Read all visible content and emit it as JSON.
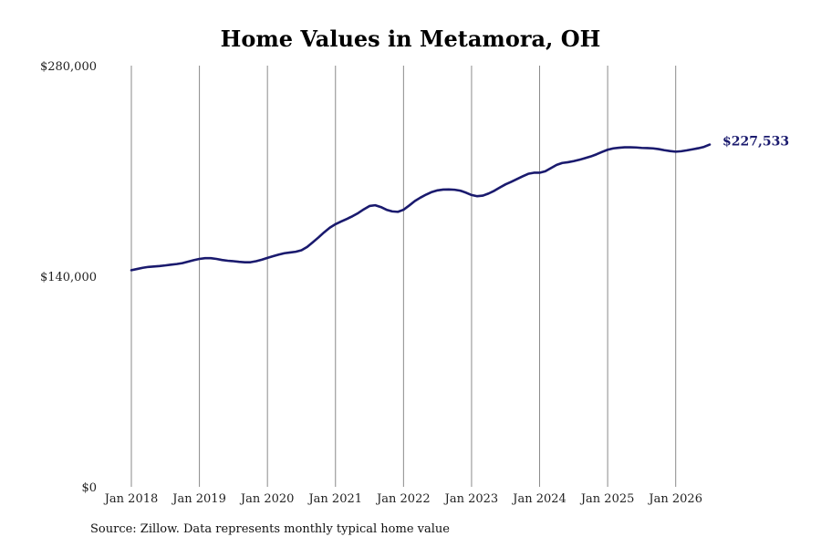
{
  "chart_data": {
    "type": "line",
    "title": "Home Values in Metamora, OH",
    "xlabel": "",
    "ylabel": "",
    "ylim": [
      0,
      280000
    ],
    "yticks": [
      {
        "value": 0,
        "label": "$0"
      },
      {
        "value": 140000,
        "label": "$140,000"
      },
      {
        "value": 280000,
        "label": "$280,000"
      }
    ],
    "xlim": [
      "2018-01",
      "2026-07"
    ],
    "xticks": [
      {
        "date": "2018-01",
        "label": "Jan 2018"
      },
      {
        "date": "2019-01",
        "label": "Jan 2019"
      },
      {
        "date": "2020-01",
        "label": "Jan 2020"
      },
      {
        "date": "2021-01",
        "label": "Jan 2021"
      },
      {
        "date": "2022-01",
        "label": "Jan 2022"
      },
      {
        "date": "2023-01",
        "label": "Jan 2023"
      },
      {
        "date": "2024-01",
        "label": "Jan 2024"
      },
      {
        "date": "2025-01",
        "label": "Jan 2025"
      },
      {
        "date": "2026-01",
        "label": "Jan 2026"
      }
    ],
    "grid": "vertical",
    "series": [
      {
        "name": "",
        "color": "#1a1a6e",
        "points": [
          [
            "2018-01",
            144000
          ],
          [
            "2018-02",
            144800
          ],
          [
            "2018-03",
            145600
          ],
          [
            "2018-04",
            146200
          ],
          [
            "2018-05",
            146500
          ],
          [
            "2018-06",
            146800
          ],
          [
            "2018-07",
            147200
          ],
          [
            "2018-08",
            147700
          ],
          [
            "2018-09",
            148100
          ],
          [
            "2018-10",
            148700
          ],
          [
            "2018-11",
            149700
          ],
          [
            "2018-12",
            150700
          ],
          [
            "2019-01",
            151500
          ],
          [
            "2019-02",
            152000
          ],
          [
            "2019-03",
            152000
          ],
          [
            "2019-04",
            151500
          ],
          [
            "2019-05",
            150800
          ],
          [
            "2019-06",
            150300
          ],
          [
            "2019-07",
            150000
          ],
          [
            "2019-08",
            149600
          ],
          [
            "2019-09",
            149300
          ],
          [
            "2019-10",
            149300
          ],
          [
            "2019-11",
            150000
          ],
          [
            "2019-12",
            151000
          ],
          [
            "2020-01",
            152200
          ],
          [
            "2020-02",
            153300
          ],
          [
            "2020-03",
            154400
          ],
          [
            "2020-04",
            155300
          ],
          [
            "2020-05",
            155800
          ],
          [
            "2020-06",
            156300
          ],
          [
            "2020-07",
            157300
          ],
          [
            "2020-08",
            159500
          ],
          [
            "2020-09",
            162600
          ],
          [
            "2020-10",
            165800
          ],
          [
            "2020-11",
            169200
          ],
          [
            "2020-12",
            172300
          ],
          [
            "2021-01",
            174600
          ],
          [
            "2021-02",
            176400
          ],
          [
            "2021-03",
            178100
          ],
          [
            "2021-04",
            179900
          ],
          [
            "2021-05",
            182000
          ],
          [
            "2021-06",
            184500
          ],
          [
            "2021-07",
            186700
          ],
          [
            "2021-08",
            187200
          ],
          [
            "2021-09",
            186000
          ],
          [
            "2021-10",
            184200
          ],
          [
            "2021-11",
            183100
          ],
          [
            "2021-12",
            182800
          ],
          [
            "2022-01",
            184200
          ],
          [
            "2022-02",
            187000
          ],
          [
            "2022-03",
            190000
          ],
          [
            "2022-04",
            192300
          ],
          [
            "2022-05",
            194300
          ],
          [
            "2022-06",
            196000
          ],
          [
            "2022-07",
            197100
          ],
          [
            "2022-08",
            197600
          ],
          [
            "2022-09",
            197700
          ],
          [
            "2022-10",
            197500
          ],
          [
            "2022-11",
            196900
          ],
          [
            "2022-12",
            195600
          ],
          [
            "2023-01",
            194000
          ],
          [
            "2023-02",
            193200
          ],
          [
            "2023-03",
            193600
          ],
          [
            "2023-04",
            195000
          ],
          [
            "2023-05",
            196800
          ],
          [
            "2023-06",
            199000
          ],
          [
            "2023-07",
            201100
          ],
          [
            "2023-08",
            202800
          ],
          [
            "2023-09",
            204600
          ],
          [
            "2023-10",
            206400
          ],
          [
            "2023-11",
            208100
          ],
          [
            "2023-12",
            208800
          ],
          [
            "2024-01",
            208800
          ],
          [
            "2024-02",
            209800
          ],
          [
            "2024-03",
            211900
          ],
          [
            "2024-04",
            214000
          ],
          [
            "2024-05",
            215300
          ],
          [
            "2024-06",
            215800
          ],
          [
            "2024-07",
            216500
          ],
          [
            "2024-08",
            217400
          ],
          [
            "2024-09",
            218500
          ],
          [
            "2024-10",
            219600
          ],
          [
            "2024-11",
            221000
          ],
          [
            "2024-12",
            222600
          ],
          [
            "2025-01",
            224100
          ],
          [
            "2025-02",
            225000
          ],
          [
            "2025-03",
            225400
          ],
          [
            "2025-04",
            225700
          ],
          [
            "2025-05",
            225700
          ],
          [
            "2025-06",
            225600
          ],
          [
            "2025-07",
            225300
          ],
          [
            "2025-08",
            225200
          ],
          [
            "2025-09",
            225000
          ],
          [
            "2025-10",
            224500
          ],
          [
            "2025-11",
            223800
          ],
          [
            "2025-12",
            223200
          ],
          [
            "2026-01",
            222800
          ],
          [
            "2026-02",
            223100
          ],
          [
            "2026-03",
            223700
          ],
          [
            "2026-04",
            224400
          ],
          [
            "2026-05",
            225100
          ],
          [
            "2026-06",
            226000
          ],
          [
            "2026-07",
            227533
          ]
        ]
      }
    ],
    "end_label": "$227,533",
    "source_note": "Source: Zillow. Data represents monthly typical home value"
  }
}
